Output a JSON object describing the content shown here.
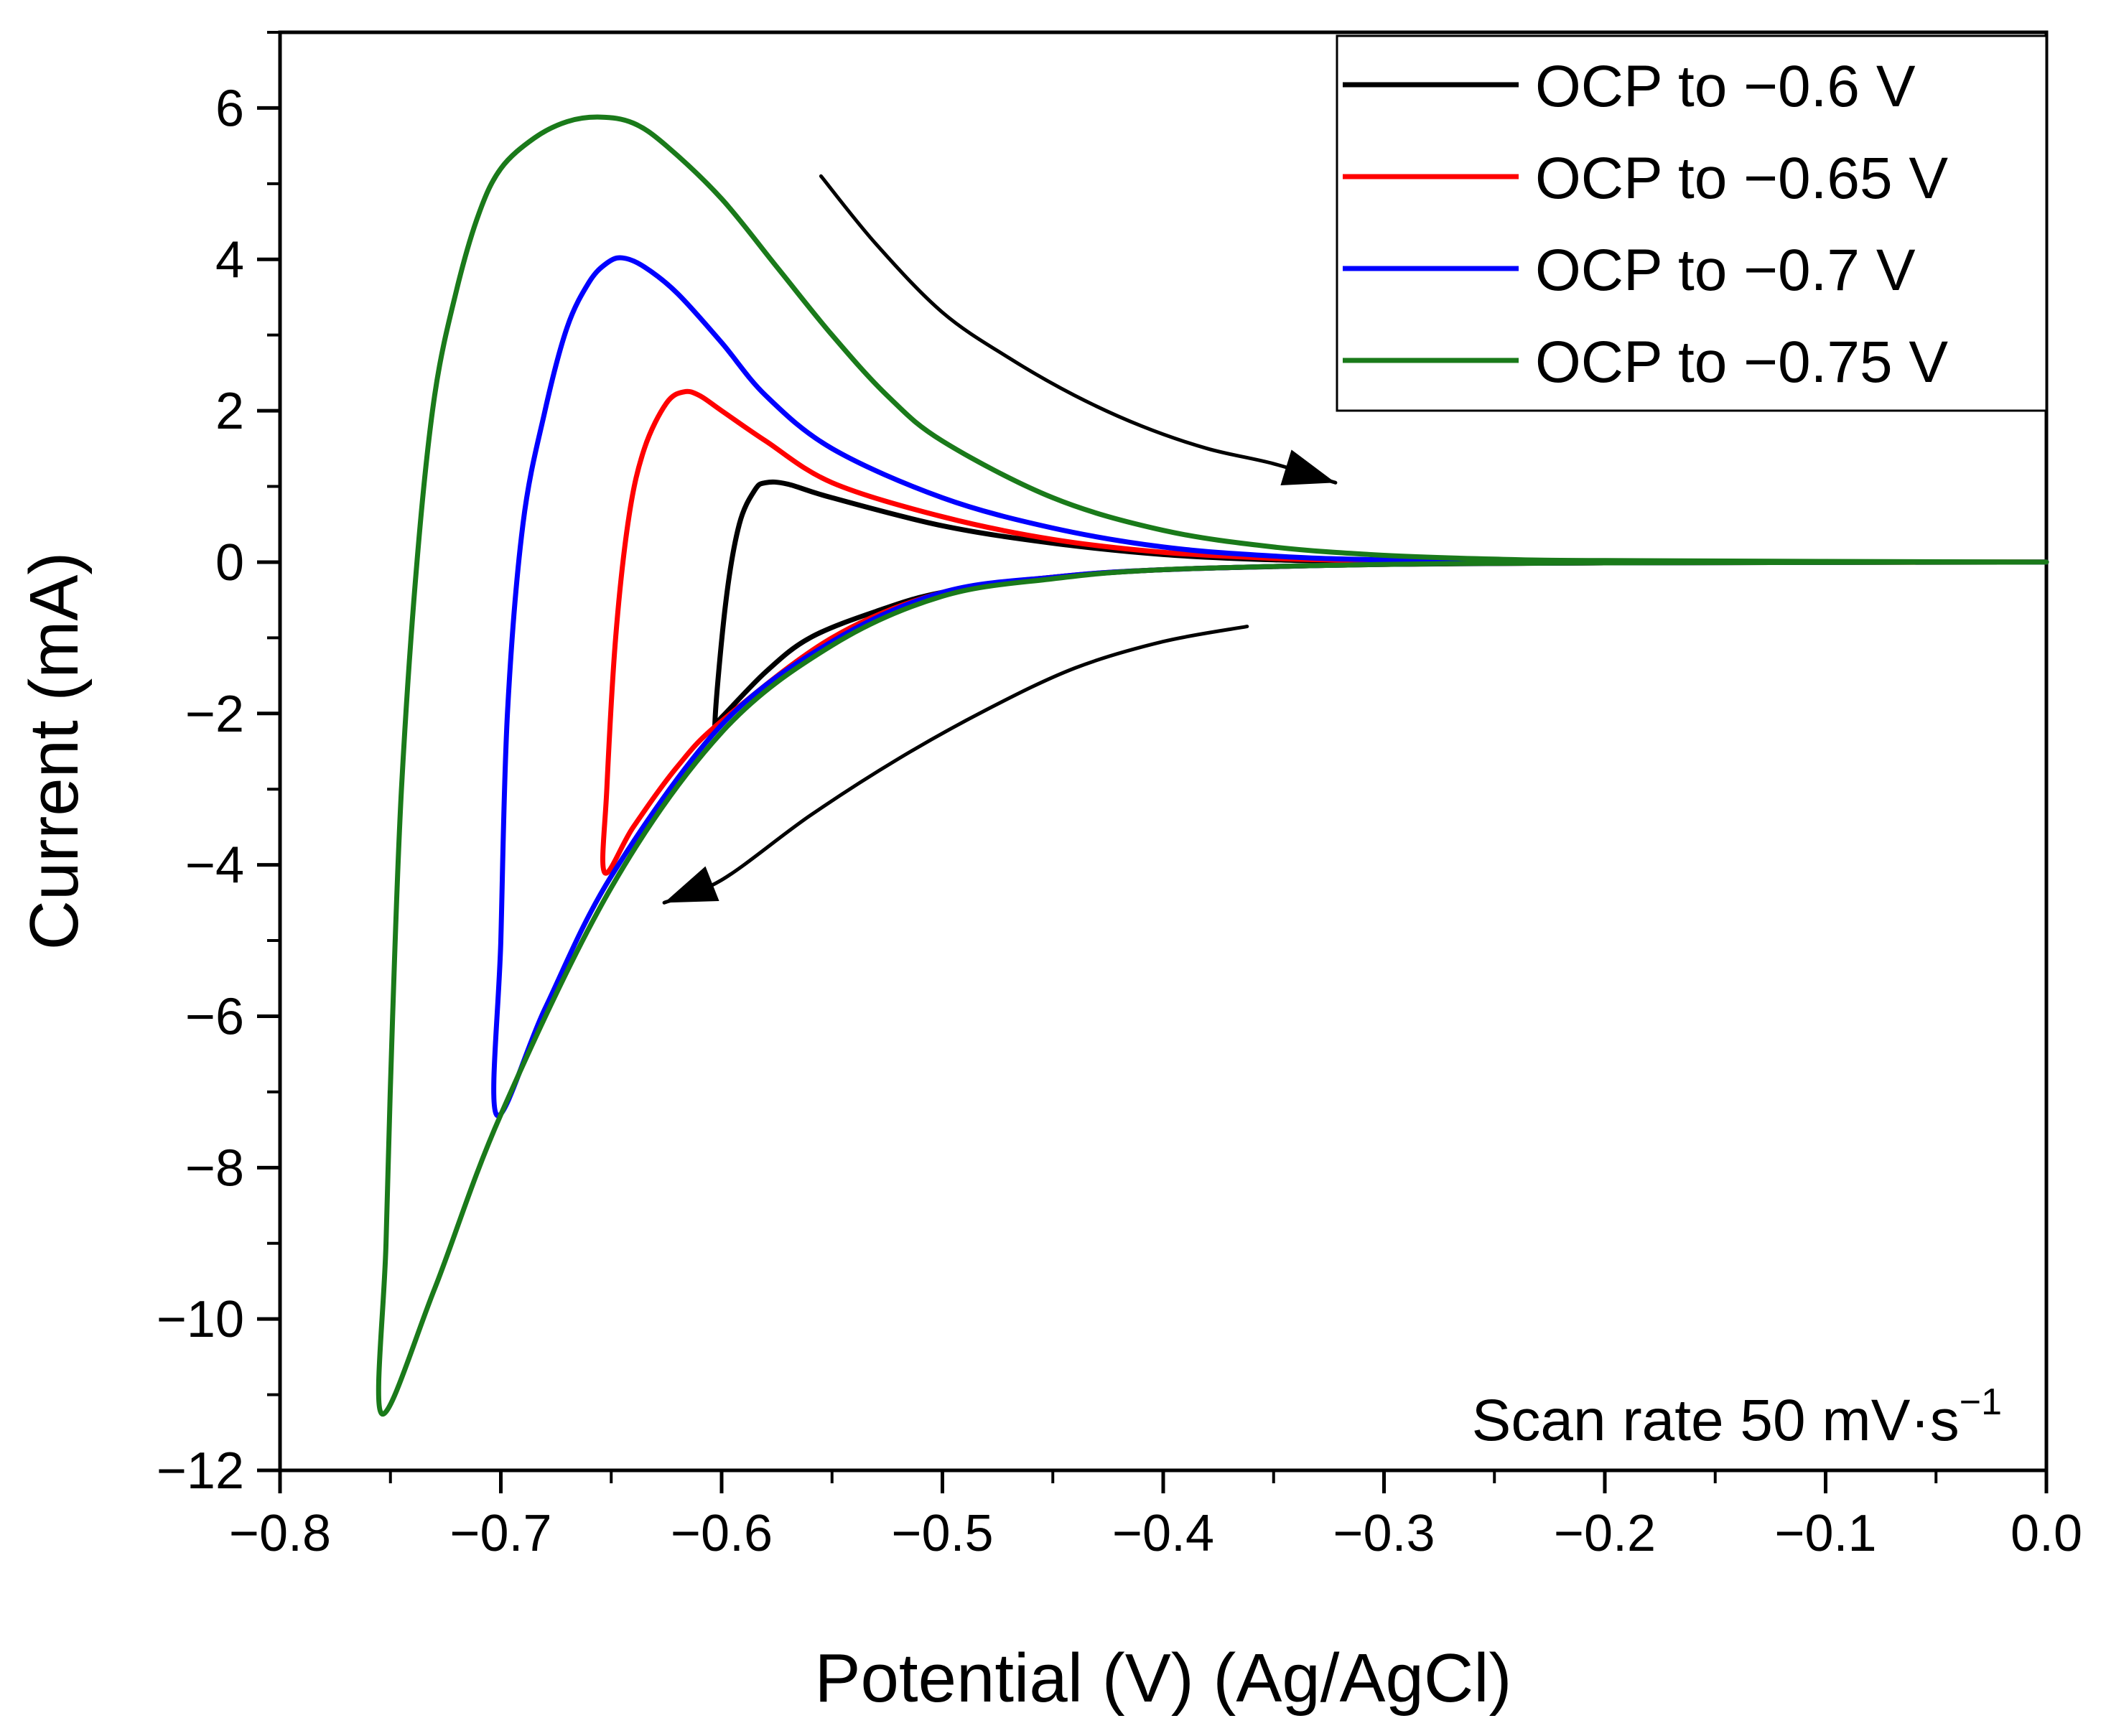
{
  "chart_data": {
    "type": "line",
    "title": "",
    "xlabel": "Potential (V) (Ag/AgCl)",
    "ylabel": "Current (mA)",
    "xlim": [
      -0.8,
      0.0
    ],
    "ylim": [
      -12,
      7
    ],
    "x_ticks": [
      {
        "value": -0.8,
        "label": "−0.8"
      },
      {
        "value": -0.7,
        "label": "−0.7"
      },
      {
        "value": -0.6,
        "label": "−0.6"
      },
      {
        "value": -0.5,
        "label": "−0.5"
      },
      {
        "value": -0.4,
        "label": "−0.4"
      },
      {
        "value": -0.3,
        "label": "−0.3"
      },
      {
        "value": -0.2,
        "label": "−0.2"
      },
      {
        "value": -0.1,
        "label": "−0.1"
      },
      {
        "value": 0.0,
        "label": "0.0"
      }
    ],
    "y_ticks": [
      {
        "value": 6,
        "label": "6"
      },
      {
        "value": 4,
        "label": "4"
      },
      {
        "value": 2,
        "label": "2"
      },
      {
        "value": 0,
        "label": "0"
      },
      {
        "value": -2,
        "label": "−2"
      },
      {
        "value": -4,
        "label": "−4"
      },
      {
        "value": -6,
        "label": "−6"
      },
      {
        "value": -8,
        "label": "−8"
      },
      {
        "value": -10,
        "label": "−10"
      },
      {
        "value": -12,
        "label": "−12"
      }
    ],
    "grid": false,
    "legend_position": "top-right",
    "annotation": {
      "text_main": "Scan rate 50 mV·s",
      "text_sup": "−1",
      "position": "bottom-right"
    },
    "series": [
      {
        "name": "OCP to −0.6 V",
        "color": "#000000",
        "points": [
          [
            0.0,
            0.0
          ],
          [
            -0.1,
            0.0
          ],
          [
            -0.2,
            -0.01
          ],
          [
            -0.3,
            -0.03
          ],
          [
            -0.35,
            -0.06
          ],
          [
            -0.4,
            -0.1
          ],
          [
            -0.45,
            -0.2
          ],
          [
            -0.5,
            -0.4
          ],
          [
            -0.53,
            -0.65
          ],
          [
            -0.56,
            -1.0
          ],
          [
            -0.58,
            -1.45
          ],
          [
            -0.6,
            -2.05
          ],
          [
            -0.603,
            -2.1
          ],
          [
            -0.598,
            -0.5
          ],
          [
            -0.592,
            0.5
          ],
          [
            -0.585,
            0.95
          ],
          [
            -0.58,
            1.05
          ],
          [
            -0.57,
            1.03
          ],
          [
            -0.55,
            0.85
          ],
          [
            -0.5,
            0.48
          ],
          [
            -0.45,
            0.25
          ],
          [
            -0.4,
            0.1
          ],
          [
            -0.35,
            0.03
          ],
          [
            -0.3,
            0.01
          ],
          [
            -0.2,
            0.0
          ],
          [
            0.0,
            0.0
          ]
        ]
      },
      {
        "name": "OCP to −0.65 V",
        "color": "#ff0000",
        "points": [
          [
            0.0,
            0.0
          ],
          [
            -0.2,
            -0.01
          ],
          [
            -0.3,
            -0.03
          ],
          [
            -0.4,
            -0.1
          ],
          [
            -0.45,
            -0.2
          ],
          [
            -0.5,
            -0.4
          ],
          [
            -0.55,
            -1.0
          ],
          [
            -0.6,
            -2.1
          ],
          [
            -0.62,
            -2.7
          ],
          [
            -0.64,
            -3.5
          ],
          [
            -0.653,
            -4.1
          ],
          [
            -0.652,
            -3.0
          ],
          [
            -0.648,
            -1.0
          ],
          [
            -0.642,
            0.6
          ],
          [
            -0.635,
            1.5
          ],
          [
            -0.625,
            2.1
          ],
          [
            -0.617,
            2.25
          ],
          [
            -0.61,
            2.2
          ],
          [
            -0.6,
            2.0
          ],
          [
            -0.58,
            1.6
          ],
          [
            -0.55,
            1.05
          ],
          [
            -0.5,
            0.6
          ],
          [
            -0.45,
            0.3
          ],
          [
            -0.4,
            0.13
          ],
          [
            -0.35,
            0.05
          ],
          [
            -0.3,
            0.02
          ],
          [
            -0.2,
            0.0
          ],
          [
            0.0,
            0.0
          ]
        ]
      },
      {
        "name": "OCP to −0.7 V",
        "color": "#0000ff",
        "points": [
          [
            0.0,
            0.0
          ],
          [
            -0.2,
            -0.01
          ],
          [
            -0.3,
            -0.03
          ],
          [
            -0.4,
            -0.1
          ],
          [
            -0.45,
            -0.2
          ],
          [
            -0.5,
            -0.4
          ],
          [
            -0.55,
            -1.05
          ],
          [
            -0.6,
            -2.15
          ],
          [
            -0.65,
            -4.15
          ],
          [
            -0.68,
            -5.9
          ],
          [
            -0.702,
            -7.3
          ],
          [
            -0.7,
            -5.0
          ],
          [
            -0.697,
            -2.0
          ],
          [
            -0.69,
            0.5
          ],
          [
            -0.68,
            2.0
          ],
          [
            -0.67,
            3.1
          ],
          [
            -0.66,
            3.7
          ],
          [
            -0.652,
            3.95
          ],
          [
            -0.645,
            4.02
          ],
          [
            -0.635,
            3.9
          ],
          [
            -0.62,
            3.55
          ],
          [
            -0.6,
            2.9
          ],
          [
            -0.58,
            2.2
          ],
          [
            -0.55,
            1.5
          ],
          [
            -0.5,
            0.85
          ],
          [
            -0.45,
            0.45
          ],
          [
            -0.4,
            0.2
          ],
          [
            -0.35,
            0.08
          ],
          [
            -0.3,
            0.03
          ],
          [
            -0.2,
            0.0
          ],
          [
            0.0,
            0.0
          ]
        ]
      },
      {
        "name": "OCP to −0.75 V",
        "color": "#1a7a1a",
        "points": [
          [
            0.0,
            0.0
          ],
          [
            -0.2,
            -0.01
          ],
          [
            -0.3,
            -0.03
          ],
          [
            -0.4,
            -0.1
          ],
          [
            -0.45,
            -0.22
          ],
          [
            -0.5,
            -0.45
          ],
          [
            -0.55,
            -1.1
          ],
          [
            -0.6,
            -2.25
          ],
          [
            -0.65,
            -4.3
          ],
          [
            -0.7,
            -7.3
          ],
          [
            -0.73,
            -9.6
          ],
          [
            -0.754,
            -11.25
          ],
          [
            -0.752,
            -9.0
          ],
          [
            -0.749,
            -6.0
          ],
          [
            -0.745,
            -3.0
          ],
          [
            -0.738,
            0.0
          ],
          [
            -0.73,
            2.2
          ],
          [
            -0.72,
            3.6
          ],
          [
            -0.71,
            4.6
          ],
          [
            -0.7,
            5.2
          ],
          [
            -0.685,
            5.6
          ],
          [
            -0.67,
            5.82
          ],
          [
            -0.655,
            5.88
          ],
          [
            -0.64,
            5.8
          ],
          [
            -0.625,
            5.5
          ],
          [
            -0.6,
            4.8
          ],
          [
            -0.575,
            3.9
          ],
          [
            -0.55,
            3.0
          ],
          [
            -0.525,
            2.2
          ],
          [
            -0.5,
            1.6
          ],
          [
            -0.45,
            0.85
          ],
          [
            -0.4,
            0.42
          ],
          [
            -0.35,
            0.2
          ],
          [
            -0.3,
            0.09
          ],
          [
            -0.25,
            0.04
          ],
          [
            -0.2,
            0.02
          ],
          [
            0.0,
            0.0
          ]
        ]
      }
    ],
    "arrows": [
      {
        "name": "forward-scan-arrow",
        "color": "#000000",
        "points": [
          [
            -0.555,
            5.1
          ],
          [
            -0.53,
            4.2
          ],
          [
            -0.5,
            3.3
          ],
          [
            -0.47,
            2.7
          ],
          [
            -0.44,
            2.2
          ],
          [
            -0.41,
            1.8
          ],
          [
            -0.38,
            1.5
          ],
          [
            -0.35,
            1.3
          ],
          [
            -0.322,
            1.05
          ]
        ]
      },
      {
        "name": "reverse-scan-arrow",
        "color": "#000000",
        "points": [
          [
            -0.362,
            -0.85
          ],
          [
            -0.4,
            -1.05
          ],
          [
            -0.44,
            -1.4
          ],
          [
            -0.48,
            -1.95
          ],
          [
            -0.52,
            -2.6
          ],
          [
            -0.56,
            -3.35
          ],
          [
            -0.6,
            -4.2
          ],
          [
            -0.626,
            -4.5
          ]
        ]
      }
    ]
  }
}
